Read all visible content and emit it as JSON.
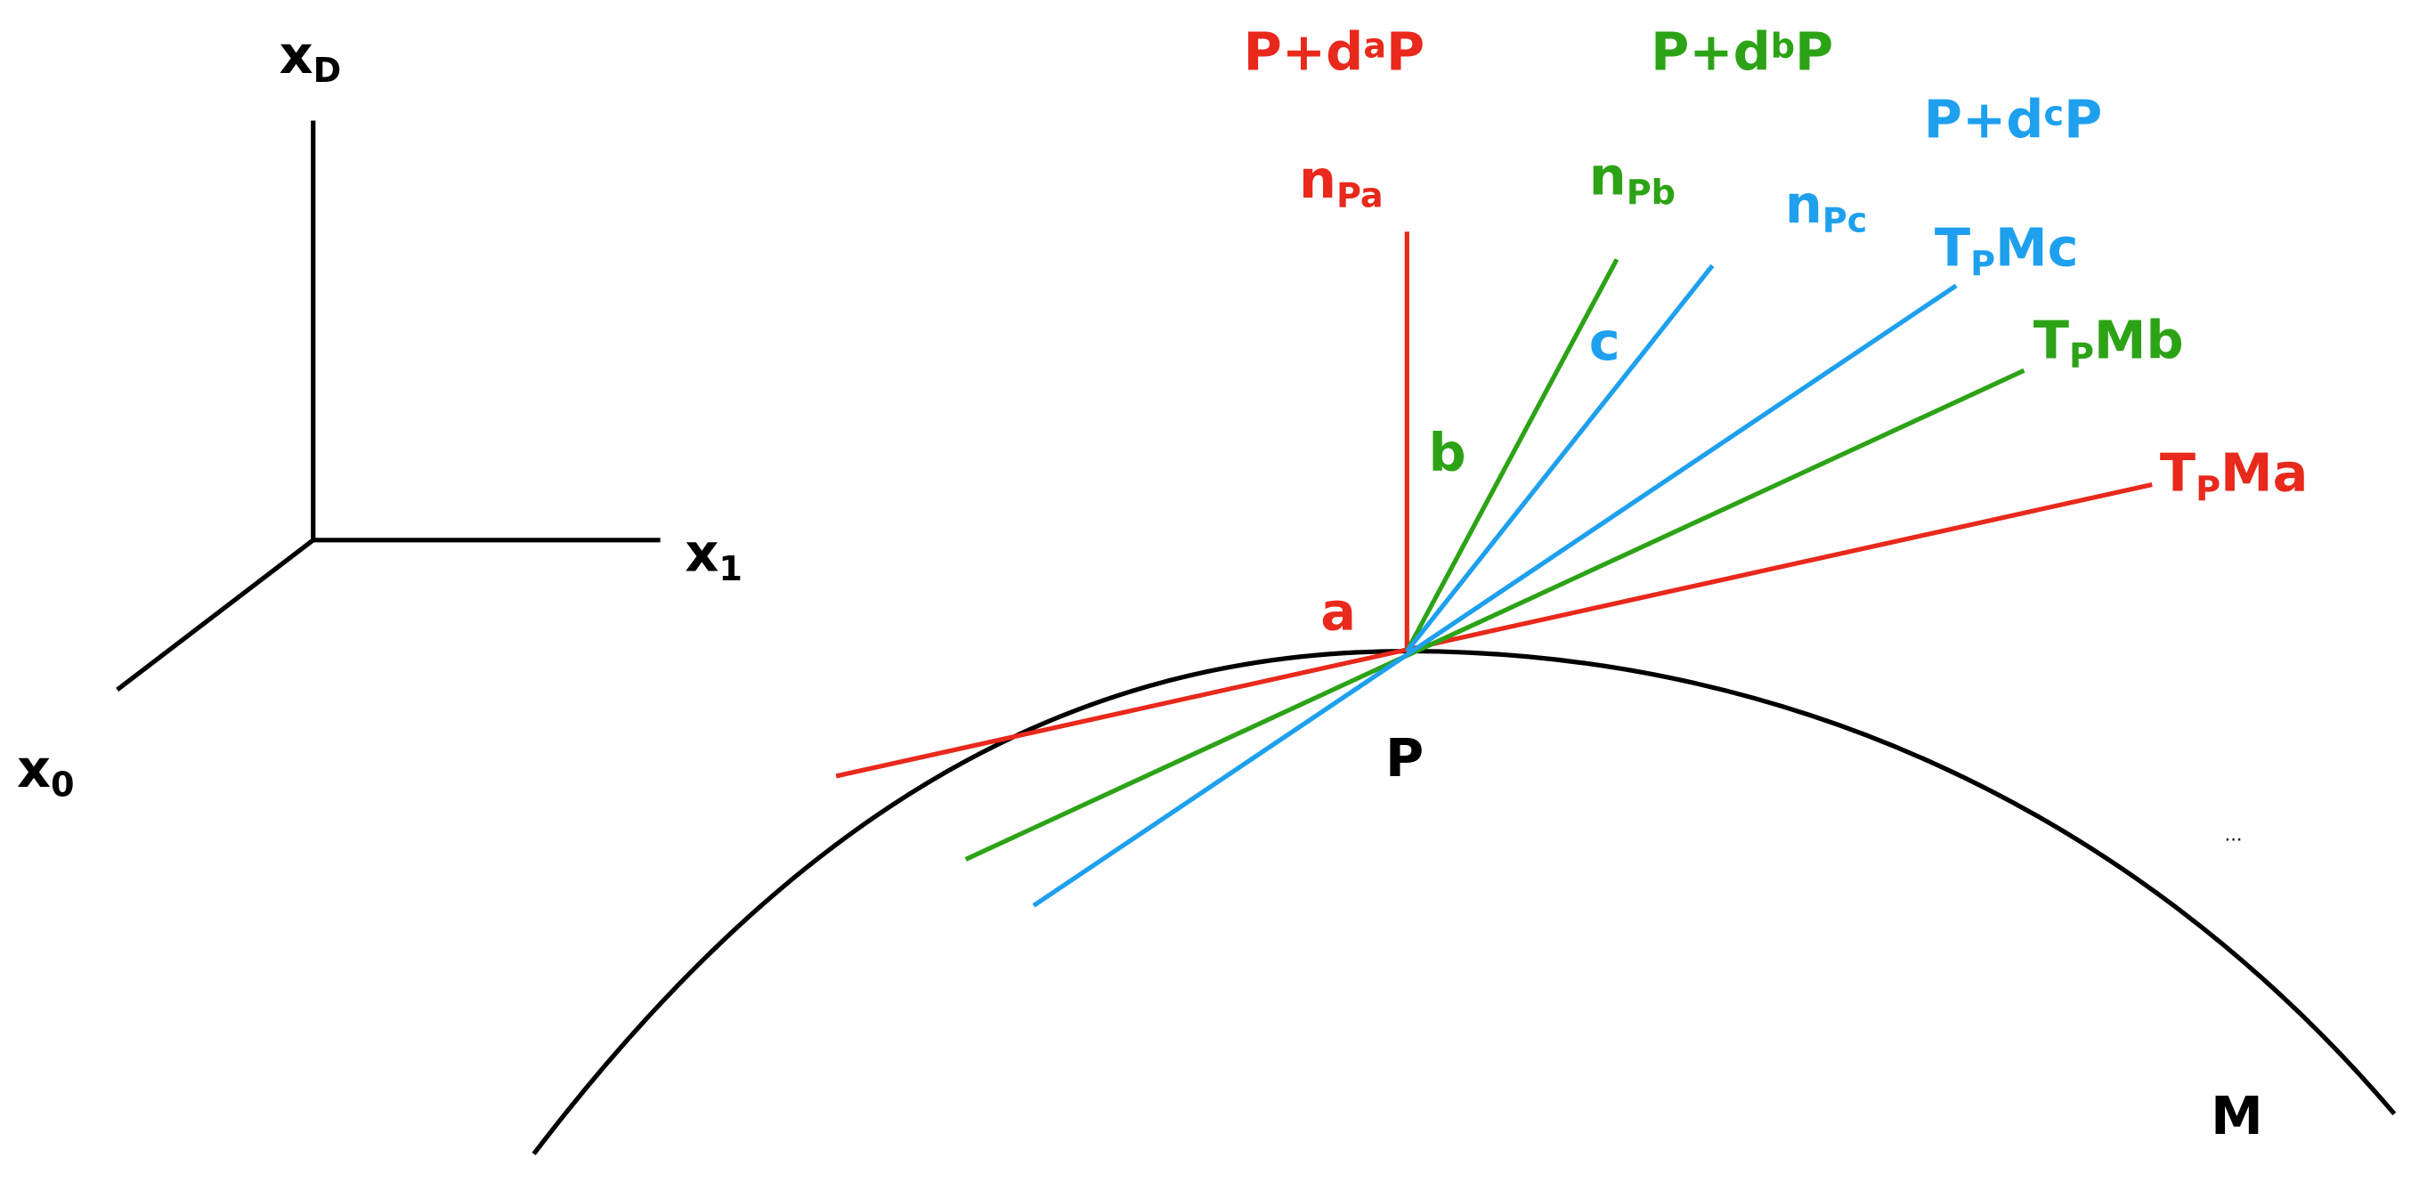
{
  "axes": {
    "vertical": {
      "base": "x",
      "sub": "D"
    },
    "horizontal": {
      "base": "x",
      "sub": "1"
    },
    "diagonal": {
      "base": "x",
      "sub": "0"
    }
  },
  "point": "P",
  "manifold": "M",
  "ellipsis": "...",
  "metrics": [
    {
      "name": "a",
      "color": "#e8291c",
      "neighbor": {
        "pre": "P+d",
        "sup": "a",
        "post": "P"
      },
      "normal": {
        "base": "n",
        "sub": "Pa"
      },
      "tangent": {
        "base": "T",
        "sub": "P",
        "post": "Ma"
      }
    },
    {
      "name": "b",
      "color": "#2ca316",
      "neighbor": {
        "pre": "P+d",
        "sup": "b",
        "post": "P"
      },
      "normal": {
        "base": "n",
        "sub": "Pb"
      },
      "tangent": {
        "base": "T",
        "sub": "P",
        "post": "Mb"
      }
    },
    {
      "name": "c",
      "color": "#1ea0ee",
      "neighbor": {
        "pre": "P+d",
        "sup": "c",
        "post": "P"
      },
      "normal": {
        "base": "n",
        "sub": "Pc"
      },
      "tangent": {
        "base": "T",
        "sub": "P",
        "post": "Mc"
      }
    }
  ]
}
